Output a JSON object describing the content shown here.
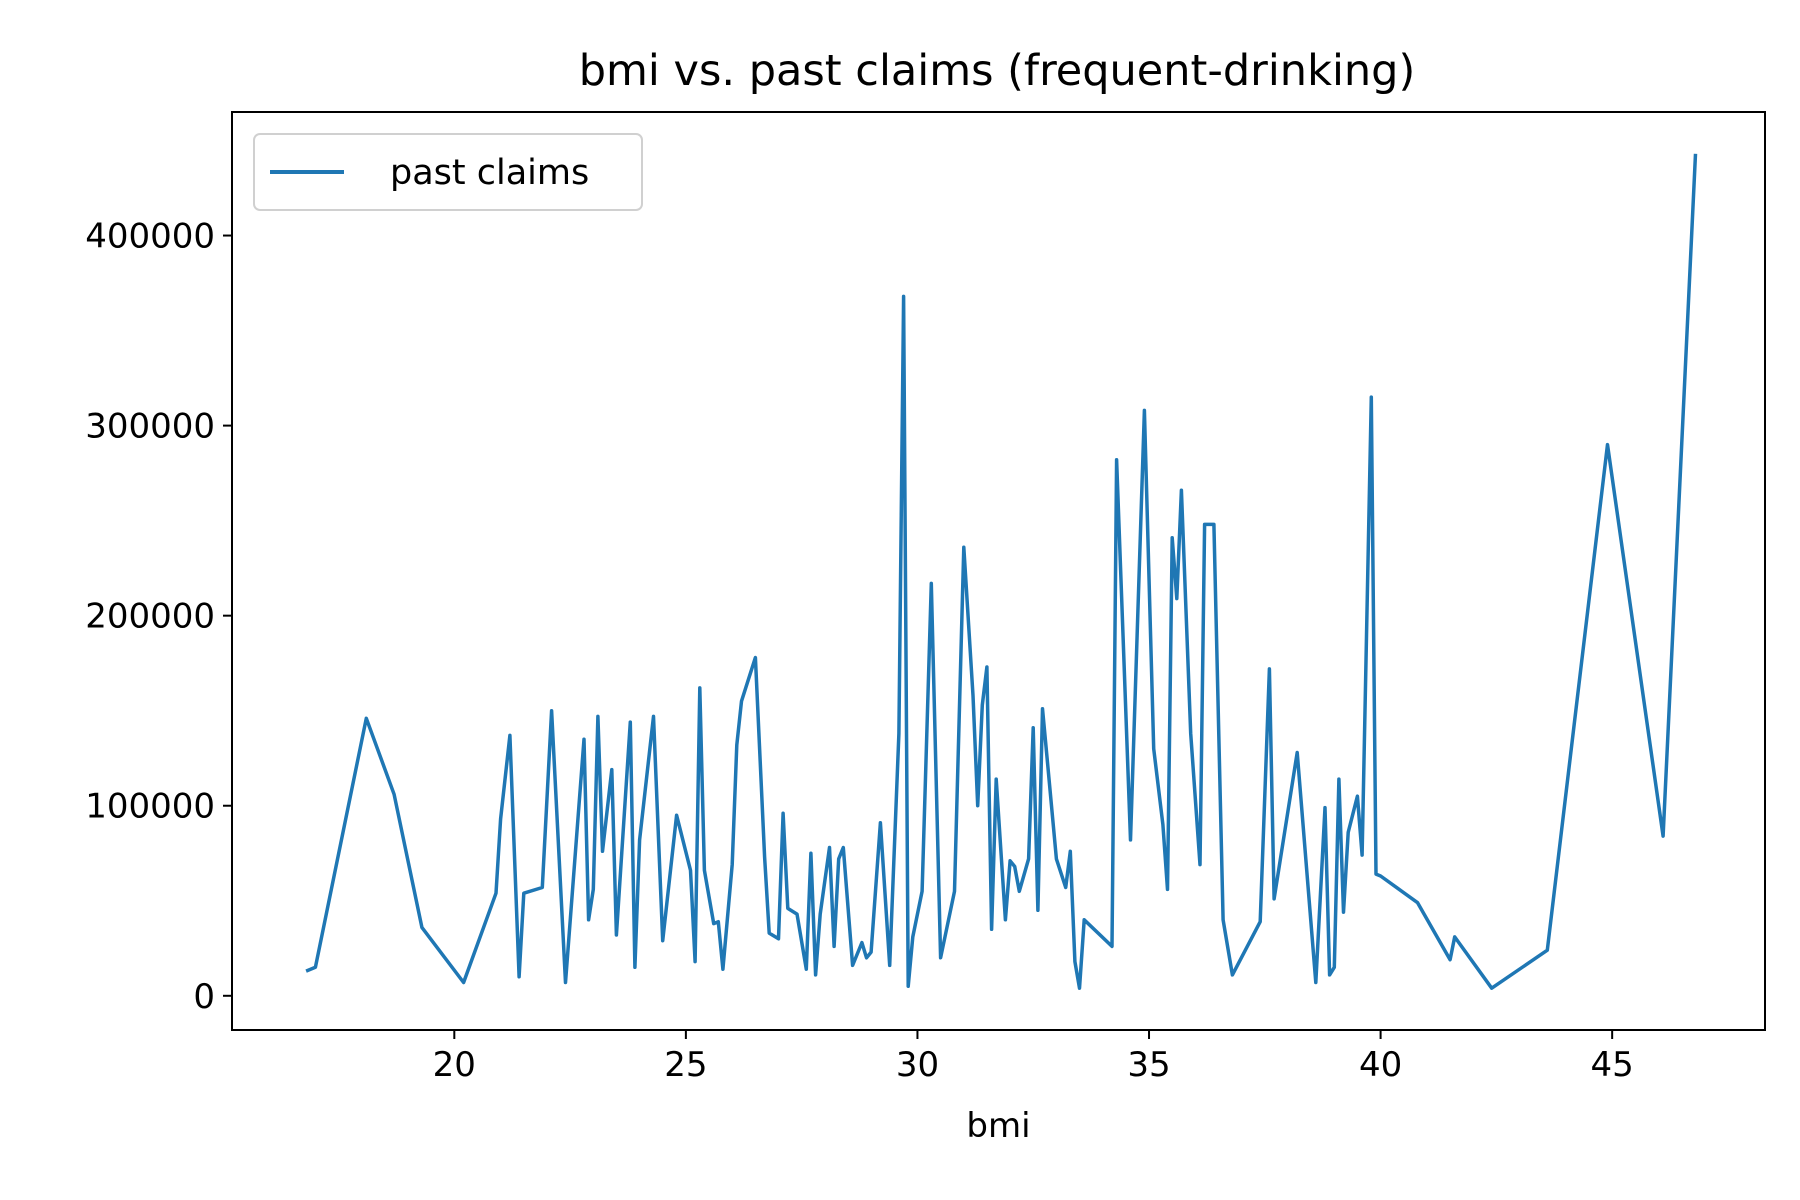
{
  "chart_data": {
    "type": "line",
    "title": "bmi vs. past claims (frequent-drinking)",
    "xlabel": "bmi",
    "ylabel": "",
    "xlim": [
      15.2,
      48.3
    ],
    "ylim": [
      -18000,
      465000
    ],
    "xticks": [
      20,
      25,
      30,
      35,
      40,
      45
    ],
    "yticks": [
      0,
      100000,
      200000,
      300000,
      400000
    ],
    "grid": false,
    "legend_position": "upper-left",
    "series": [
      {
        "name": "past claims",
        "color": "#1f77b4",
        "x": [
          16.8,
          17.0,
          18.1,
          18.7,
          19.3,
          20.2,
          20.9,
          21.0,
          21.2,
          21.4,
          21.5,
          21.9,
          22.1,
          22.4,
          22.8,
          22.9,
          23.0,
          23.1,
          23.2,
          23.4,
          23.5,
          23.8,
          23.9,
          24.0,
          24.3,
          24.5,
          24.8,
          25.1,
          25.2,
          25.3,
          25.4,
          25.6,
          25.7,
          25.8,
          26.0,
          26.1,
          26.2,
          26.5,
          26.7,
          26.8,
          27.0,
          27.1,
          27.2,
          27.4,
          27.6,
          27.7,
          27.8,
          27.9,
          28.1,
          28.2,
          28.3,
          28.4,
          28.6,
          28.8,
          28.9,
          29.0,
          29.2,
          29.4,
          29.6,
          29.7,
          29.8,
          29.9,
          30.1,
          30.3,
          30.5,
          30.8,
          31.0,
          31.2,
          31.3,
          31.4,
          31.5,
          31.6,
          31.7,
          31.9,
          32.0,
          32.1,
          32.2,
          32.4,
          32.5,
          32.6,
          32.7,
          32.8,
          33.0,
          33.2,
          33.3,
          33.4,
          33.5,
          33.6,
          34.2,
          34.3,
          34.6,
          34.9,
          35.1,
          35.3,
          35.4,
          35.5,
          35.6,
          35.7,
          35.9,
          36.1,
          36.2,
          36.4,
          36.6,
          36.8,
          37.4,
          37.6,
          37.7,
          38.2,
          38.6,
          38.8,
          38.9,
          39.0,
          39.1,
          39.2,
          39.3,
          39.5,
          39.6,
          39.8,
          39.9,
          40.0,
          40.8,
          41.5,
          41.6,
          42.4,
          43.6,
          44.9,
          46.1,
          46.8
        ],
        "values": [
          13000,
          15000,
          146000,
          106000,
          36000,
          7000,
          54000,
          93000,
          137000,
          10000,
          54000,
          57000,
          150000,
          7000,
          135000,
          40000,
          56000,
          147000,
          76000,
          119000,
          32000,
          144000,
          15000,
          82000,
          147000,
          29000,
          95000,
          66000,
          18000,
          162000,
          66000,
          38000,
          39000,
          14000,
          69000,
          132000,
          155000,
          178000,
          73000,
          33000,
          30000,
          96000,
          46000,
          43000,
          14000,
          75000,
          11000,
          43000,
          78000,
          26000,
          72000,
          78000,
          16000,
          28000,
          20000,
          23000,
          91000,
          16000,
          138000,
          368000,
          5000,
          31000,
          55000,
          217000,
          20000,
          55000,
          236000,
          158000,
          100000,
          153000,
          173000,
          35000,
          114000,
          40000,
          71000,
          68000,
          55000,
          72000,
          141000,
          45000,
          151000,
          125000,
          72000,
          57000,
          76000,
          18000,
          4000,
          40000,
          26000,
          282000,
          82000,
          308000,
          130000,
          90000,
          56000,
          241000,
          209000,
          266000,
          138000,
          69000,
          248000,
          248000,
          40000,
          11000,
          39000,
          172000,
          51000,
          128000,
          7000,
          99000,
          11000,
          15000,
          114000,
          44000,
          86000,
          105000,
          74000,
          315000,
          64000,
          63000,
          49000,
          19000,
          31000,
          4000,
          24000,
          290000,
          84000,
          443000
        ]
      }
    ]
  }
}
